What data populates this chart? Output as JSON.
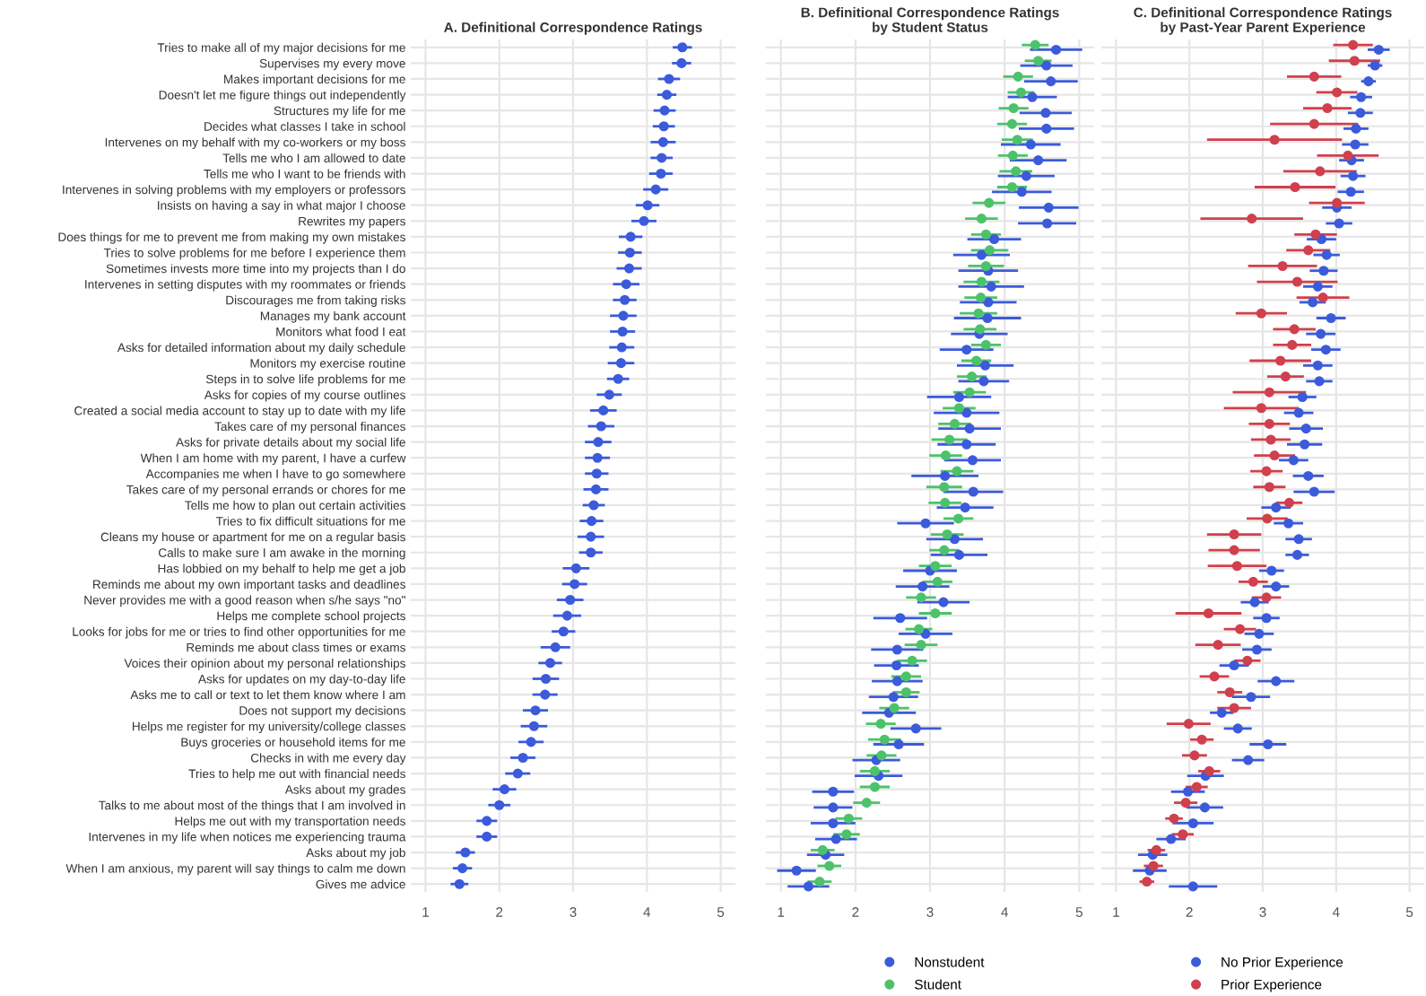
{
  "chart_data": [
    {
      "type": "scatter",
      "orientation": "horizontal",
      "title": "A. Definitional Correspondence Ratings",
      "marker": "circle",
      "grid": true,
      "xlim": [
        0.8,
        5.2
      ],
      "xticks": [
        1,
        2,
        3,
        4,
        5
      ],
      "categories": [
        "Tries to make all of my major decisions for me",
        "Supervises my every move",
        "Makes important decisions for me",
        "Doesn't let me figure things out independently",
        "Structures my life for me",
        "Decides what classes I take in school",
        "Intervenes on my behalf with my co-workers or my boss",
        "Tells me who I am allowed to date",
        "Tells me who I want to be friends with",
        "Intervenes in solving problems with my employers or professors",
        "Insists on having a say in what major I choose",
        "Rewrites my papers",
        "Does things for me to prevent me from making my own mistakes",
        "Tries to solve problems for me before I experience them",
        "Sometimes invests more time into my projects than I do",
        "Intervenes in setting disputes with my roommates or friends",
        "Discourages me from taking risks",
        "Manages my bank account",
        "Monitors what food I eat",
        "Asks for detailed information about my daily schedule",
        "Monitors my exercise routine",
        "Steps in to solve life problems for me",
        "Asks for copies of my course outlines",
        "Created a social media account to stay up to date with my life",
        "Takes care of my personal finances",
        "Asks for private details about my social life",
        "When I am home with my parent, I have a curfew",
        "Accompanies me when I have to go somewhere",
        "Takes care of my personal errands or chores for me",
        "Tells me how to plan out certain activities",
        "Tries to fix difficult situations for me",
        "Cleans my house or apartment for me on a regular basis",
        "Calls to make sure I am awake in the morning",
        "Has lobbied on my behalf to help me get a job",
        "Reminds me about my own important tasks and deadlines",
        "Never provides me with a good reason when s/he says \"no\"",
        "Helps me complete school projects",
        "Looks for jobs for me or tries to find other opportunities for me",
        "Reminds me about class times or exams",
        "Voices their opinion about my personal relationships",
        "Asks for updates on my day-to-day life",
        "Asks me to call or text to let them know where I am",
        "Does not support my decisions",
        "Helps me register for my university/college classes",
        "Buys groceries or household items for me",
        "Checks in with me every day",
        "Tries to help me out with financial needs",
        "Asks about my grades",
        "Talks to me about most of the things that I am involved in",
        "Helps me out with my transportation needs",
        "Intervenes in my life when notices me experiencing trauma",
        "Asks about my job",
        "When I am anxious, my parent will say things to calm me down",
        "Gives me advice"
      ],
      "series": [
        {
          "color": "#3b5bdb",
          "values": [
            4.48,
            4.47,
            4.3,
            4.27,
            4.24,
            4.23,
            4.22,
            4.2,
            4.19,
            4.12,
            4.01,
            3.96,
            3.78,
            3.77,
            3.76,
            3.72,
            3.7,
            3.68,
            3.67,
            3.66,
            3.65,
            3.61,
            3.49,
            3.41,
            3.38,
            3.34,
            3.33,
            3.32,
            3.31,
            3.28,
            3.25,
            3.24,
            3.24,
            3.04,
            3.02,
            2.96,
            2.92,
            2.87,
            2.76,
            2.69,
            2.63,
            2.62,
            2.49,
            2.47,
            2.43,
            2.32,
            2.25,
            2.07,
            2.0,
            1.83,
            1.83,
            1.54,
            1.5,
            1.46
          ],
          "errors": [
            0.13,
            0.13,
            0.15,
            0.13,
            0.15,
            0.15,
            0.17,
            0.15,
            0.16,
            0.17,
            0.16,
            0.17,
            0.16,
            0.16,
            0.17,
            0.18,
            0.16,
            0.18,
            0.17,
            0.17,
            0.18,
            0.15,
            0.17,
            0.18,
            0.18,
            0.18,
            0.17,
            0.16,
            0.17,
            0.15,
            0.16,
            0.18,
            0.16,
            0.18,
            0.17,
            0.18,
            0.19,
            0.16,
            0.2,
            0.16,
            0.18,
            0.17,
            0.17,
            0.18,
            0.17,
            0.17,
            0.17,
            0.16,
            0.15,
            0.14,
            0.14,
            0.13,
            0.13,
            0.12
          ]
        }
      ]
    },
    {
      "type": "scatter",
      "orientation": "horizontal",
      "title": "B. Definitional Correspondence Ratings\nby Student Status",
      "marker": "circle",
      "grid": true,
      "xlim": [
        0.8,
        5.2
      ],
      "xticks": [
        1,
        2,
        3,
        4,
        5
      ],
      "tick_labels": "x",
      "legend": "bottom",
      "series": [
        {
          "name": "Nonstudent",
          "color": "#3b5bdb",
          "values": [
            4.69,
            4.56,
            4.62,
            4.37,
            4.55,
            4.56,
            4.35,
            4.45,
            4.29,
            4.23,
            4.59,
            4.57,
            3.86,
            3.69,
            3.78,
            3.82,
            3.78,
            3.77,
            3.66,
            3.49,
            3.74,
            3.72,
            3.39,
            3.49,
            3.53,
            3.49,
            3.57,
            3.2,
            3.58,
            3.47,
            2.94,
            3.33,
            3.39,
            3.0,
            2.9,
            3.18,
            2.6,
            2.94,
            2.56,
            2.55,
            2.56,
            2.51,
            2.45,
            2.81,
            2.58,
            2.28,
            2.31,
            1.7,
            1.7,
            1.7,
            1.74,
            1.6,
            1.21,
            1.37
          ],
          "errors": [
            0.35,
            0.35,
            0.36,
            0.33,
            0.35,
            0.37,
            0.4,
            0.38,
            0.38,
            0.4,
            0.4,
            0.39,
            0.36,
            0.38,
            0.4,
            0.44,
            0.38,
            0.45,
            0.38,
            0.36,
            0.38,
            0.34,
            0.43,
            0.44,
            0.42,
            0.39,
            0.38,
            0.45,
            0.4,
            0.38,
            0.38,
            0.38,
            0.38,
            0.36,
            0.36,
            0.35,
            0.36,
            0.36,
            0.35,
            0.3,
            0.34,
            0.33,
            0.36,
            0.34,
            0.34,
            0.32,
            0.32,
            0.28,
            0.26,
            0.3,
            0.28,
            0.25,
            0.26,
            0.28
          ]
        },
        {
          "name": "Student",
          "color": "#4cc26b",
          "values": [
            4.41,
            4.45,
            4.18,
            4.22,
            4.12,
            4.1,
            4.17,
            4.11,
            4.15,
            4.1,
            3.79,
            3.69,
            3.75,
            3.8,
            3.75,
            3.69,
            3.68,
            3.65,
            3.67,
            3.75,
            3.62,
            3.56,
            3.53,
            3.39,
            3.33,
            3.26,
            3.21,
            3.36,
            3.19,
            3.2,
            3.38,
            3.23,
            3.19,
            3.07,
            3.1,
            2.88,
            3.07,
            2.85,
            2.88,
            2.76,
            2.68,
            2.68,
            2.52,
            2.34,
            2.39,
            2.35,
            2.26,
            2.26,
            2.15,
            1.91,
            1.88,
            1.56,
            1.65,
            1.52
          ],
          "errors": [
            0.18,
            0.18,
            0.2,
            0.18,
            0.2,
            0.2,
            0.21,
            0.2,
            0.22,
            0.2,
            0.22,
            0.22,
            0.2,
            0.25,
            0.24,
            0.24,
            0.22,
            0.25,
            0.22,
            0.2,
            0.2,
            0.2,
            0.22,
            0.22,
            0.22,
            0.24,
            0.22,
            0.22,
            0.24,
            0.22,
            0.2,
            0.22,
            0.2,
            0.22,
            0.2,
            0.2,
            0.22,
            0.18,
            0.22,
            0.2,
            0.2,
            0.18,
            0.2,
            0.2,
            0.22,
            0.2,
            0.2,
            0.2,
            0.18,
            0.18,
            0.18,
            0.16,
            0.16,
            0.16
          ]
        }
      ]
    },
    {
      "type": "scatter",
      "orientation": "horizontal",
      "title": "C. Definitional Correspondence Ratings\nby Past-Year Parent Experience",
      "marker": "circle",
      "grid": true,
      "xlim": [
        0.8,
        5.2
      ],
      "xticks": [
        1,
        2,
        3,
        4,
        5
      ],
      "tick_labels": "x",
      "legend": "bottom",
      "series": [
        {
          "name": "No Prior Experience",
          "color": "#3b5bdb",
          "values": [
            4.58,
            4.53,
            4.44,
            4.34,
            4.33,
            4.27,
            4.26,
            4.21,
            4.23,
            4.2,
            4.01,
            4.04,
            3.8,
            3.87,
            3.83,
            3.75,
            3.68,
            3.93,
            3.79,
            3.86,
            3.75,
            3.77,
            3.54,
            3.49,
            3.59,
            3.57,
            3.42,
            3.62,
            3.7,
            3.18,
            3.35,
            3.49,
            3.47,
            3.12,
            3.18,
            2.89,
            3.05,
            2.95,
            2.92,
            2.61,
            3.18,
            2.84,
            2.44,
            2.66,
            3.07,
            2.8,
            2.22,
            1.98,
            2.21,
            2.05,
            1.75,
            1.5,
            1.46,
            2.05
          ],
          "errors": [
            0.15,
            0.1,
            0.1,
            0.15,
            0.17,
            0.17,
            0.18,
            0.17,
            0.17,
            0.18,
            0.2,
            0.18,
            0.2,
            0.18,
            0.19,
            0.2,
            0.18,
            0.2,
            0.2,
            0.2,
            0.2,
            0.18,
            0.19,
            0.2,
            0.23,
            0.24,
            0.2,
            0.21,
            0.28,
            0.2,
            0.2,
            0.18,
            0.16,
            0.17,
            0.18,
            0.19,
            0.18,
            0.2,
            0.2,
            0.2,
            0.25,
            0.26,
            0.16,
            0.19,
            0.25,
            0.22,
            0.25,
            0.23,
            0.25,
            0.28,
            0.2,
            0.2,
            0.23,
            0.33
          ]
        },
        {
          "name": "Prior Experience",
          "color": "#d0404d",
          "values": [
            4.23,
            4.25,
            3.7,
            4.01,
            3.88,
            3.7,
            3.16,
            4.16,
            3.78,
            3.44,
            4.01,
            2.85,
            3.72,
            3.62,
            3.27,
            3.47,
            3.82,
            2.98,
            3.43,
            3.4,
            3.24,
            3.31,
            3.09,
            2.98,
            3.09,
            3.11,
            3.16,
            3.05,
            3.09,
            3.36,
            3.06,
            2.61,
            2.61,
            2.65,
            2.87,
            3.05,
            2.26,
            2.69,
            2.39,
            2.79,
            2.34,
            2.55,
            2.61,
            1.99,
            2.17,
            2.07,
            2.27,
            2.1,
            1.95,
            1.79,
            1.91,
            1.55,
            1.51,
            1.42
          ],
          "errors": [
            0.27,
            0.35,
            0.37,
            0.28,
            0.33,
            0.6,
            0.92,
            0.42,
            0.5,
            0.55,
            0.38,
            0.7,
            0.29,
            0.3,
            0.47,
            0.55,
            0.36,
            0.35,
            0.29,
            0.26,
            0.42,
            0.25,
            0.5,
            0.51,
            0.28,
            0.27,
            0.28,
            0.22,
            0.22,
            0.18,
            0.28,
            0.37,
            0.35,
            0.4,
            0.2,
            0.2,
            0.45,
            0.22,
            0.31,
            0.18,
            0.2,
            0.17,
            0.23,
            0.3,
            0.16,
            0.17,
            0.15,
            0.15,
            0.16,
            0.12,
            0.15,
            0.12,
            0.13,
            0.1
          ]
        }
      ]
    }
  ]
}
